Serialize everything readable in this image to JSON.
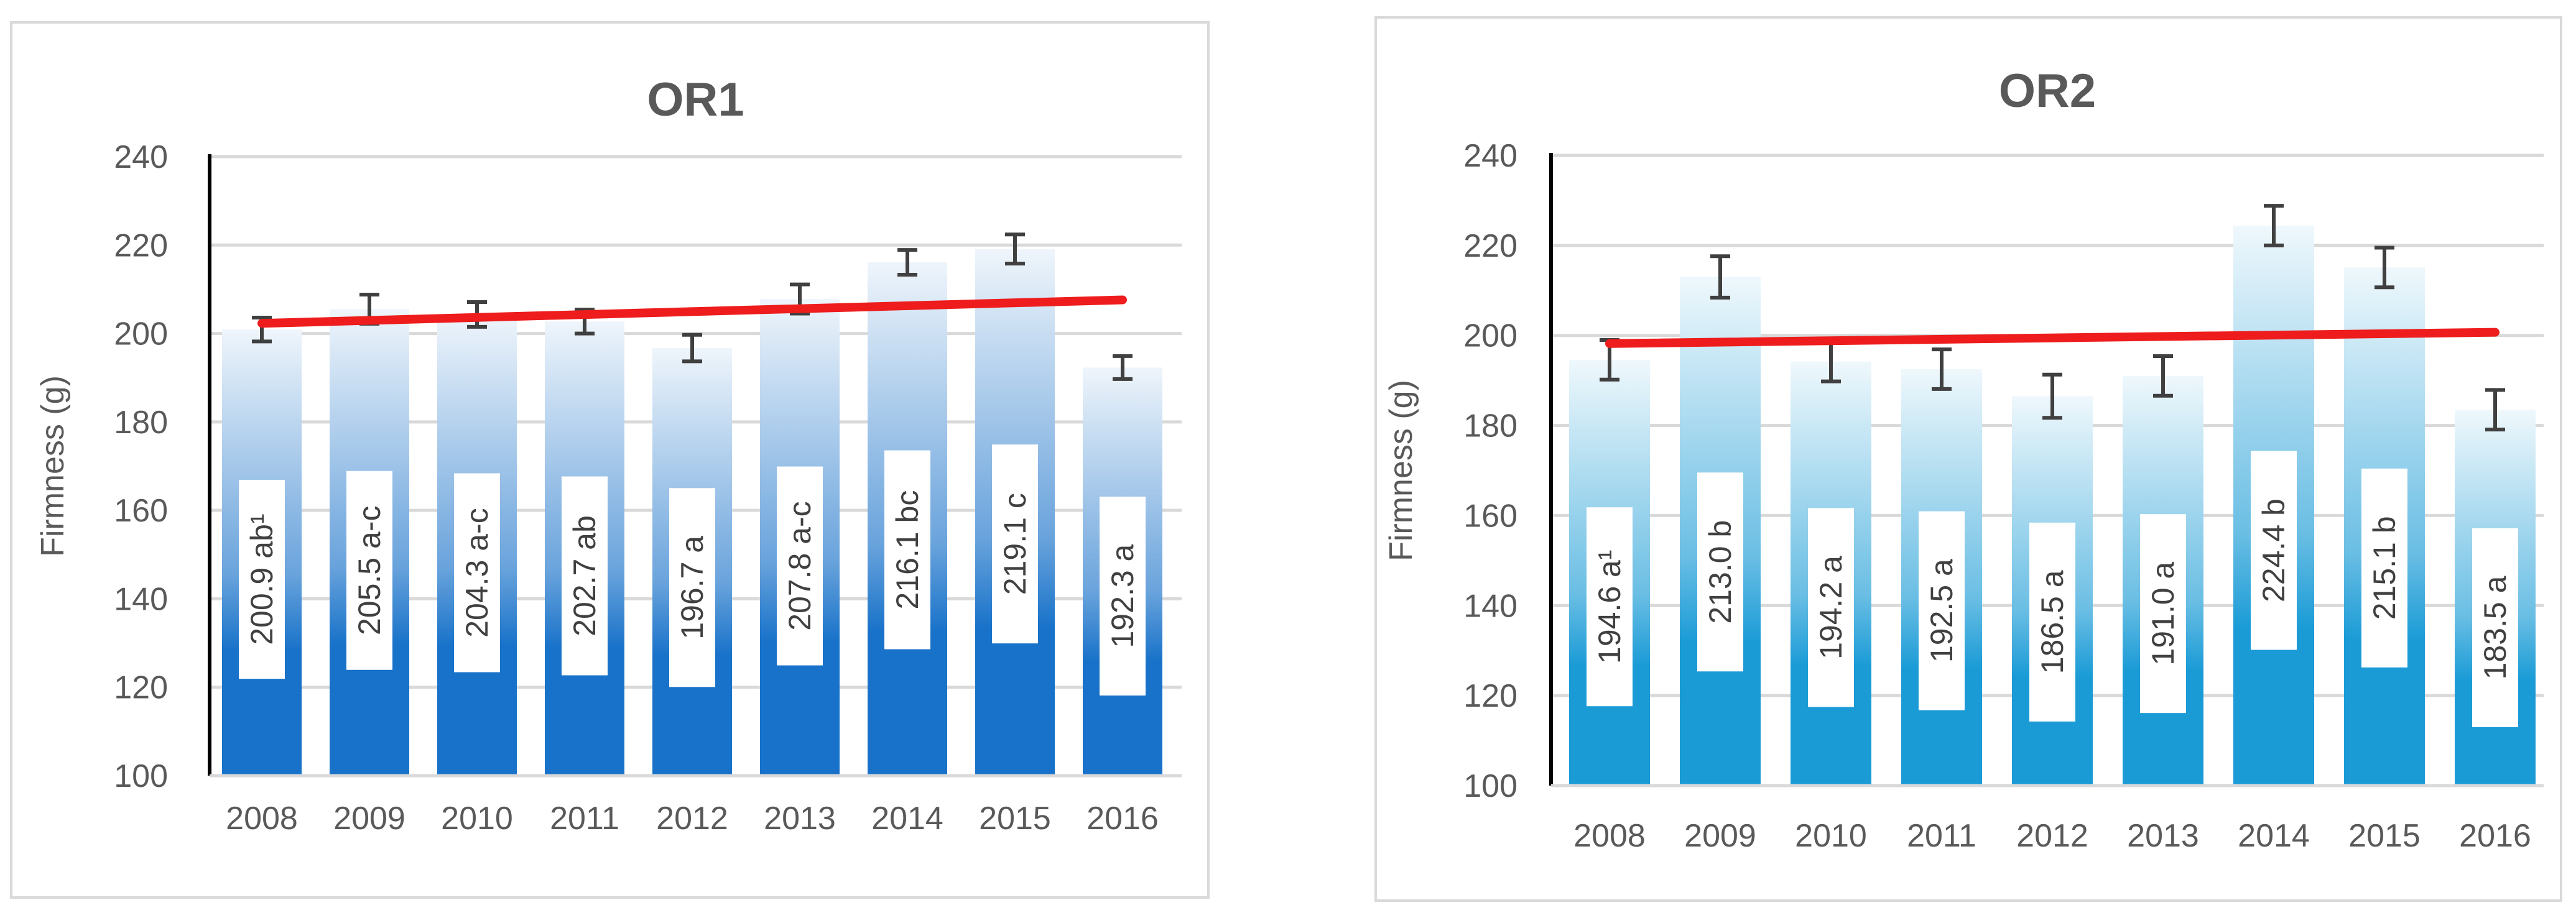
{
  "chart_data": [
    {
      "type": "bar",
      "title": "OR1",
      "xlabel": "",
      "ylabel": "Firmness (g)",
      "ylim": [
        100,
        240
      ],
      "yticks": [
        100,
        120,
        140,
        160,
        180,
        200,
        220,
        240
      ],
      "grid": true,
      "categories": [
        "2008",
        "2009",
        "2010",
        "2011",
        "2012",
        "2013",
        "2014",
        "2015",
        "2016"
      ],
      "values": [
        200.9,
        205.5,
        204.3,
        202.7,
        196.7,
        207.8,
        216.1,
        219.1,
        192.3
      ],
      "error": [
        2.7,
        3.3,
        2.8,
        2.7,
        3.0,
        3.3,
        2.8,
        3.3,
        2.6
      ],
      "labels": [
        "200.9 ab¹",
        "205.5 a-c",
        "204.3 a-c",
        "202.7 ab",
        "196.7 a",
        "207.8 a-c",
        "216.1 bc",
        "219.1 c",
        "192.3 a"
      ],
      "trend": {
        "start": 202.3,
        "end": 207.6
      },
      "bar_color": "#1872c9",
      "trend_color": "#ee1c1c"
    },
    {
      "type": "bar",
      "title": "OR2",
      "xlabel": "",
      "ylabel": "Firmness (g)",
      "ylim": [
        100,
        240
      ],
      "yticks": [
        100,
        120,
        140,
        160,
        180,
        200,
        220,
        240
      ],
      "grid": true,
      "categories": [
        "2008",
        "2009",
        "2010",
        "2011",
        "2012",
        "2013",
        "2014",
        "2015",
        "2016"
      ],
      "values": [
        194.6,
        213.0,
        194.2,
        192.5,
        186.5,
        191.0,
        224.4,
        215.1,
        183.5
      ],
      "error": [
        4.4,
        4.6,
        4.4,
        4.4,
        4.8,
        4.4,
        4.4,
        4.4,
        4.4
      ],
      "labels": [
        "194.6 a¹",
        "213.0 b",
        "194.2 a",
        "192.5 a",
        "186.5 a",
        "191.0 a",
        "224.4 b",
        "215.1 b",
        "183.5 a"
      ],
      "trend": {
        "start": 198.2,
        "end": 200.7
      },
      "bar_color": "#1a9bd6",
      "trend_color": "#ee1c1c"
    }
  ]
}
